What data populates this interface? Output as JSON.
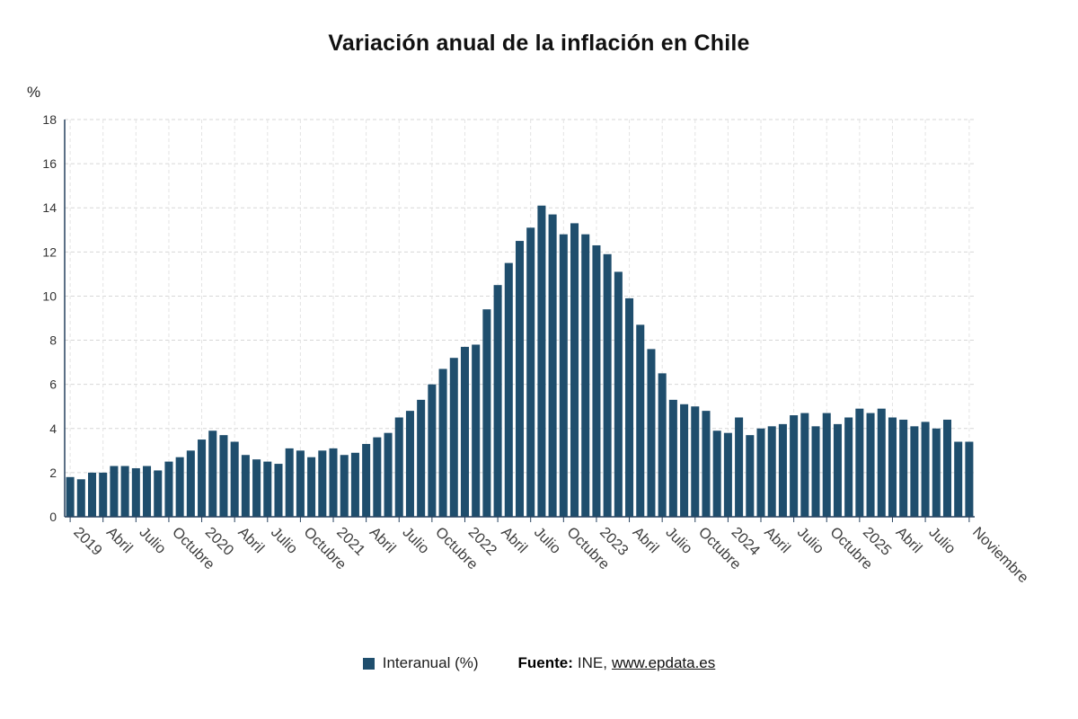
{
  "chart_data": {
    "type": "bar",
    "title": "Variación anual de la inflación en Chile",
    "ylabel": "%",
    "ylim": [
      0,
      18
    ],
    "y_ticks": [
      0,
      2,
      4,
      6,
      8,
      10,
      12,
      14,
      16,
      18
    ],
    "grid": true,
    "legend_position": "bottom",
    "bar_color": "#1f4e6d",
    "axis_color": "#26415e",
    "x_ticks": [
      {
        "i": 0,
        "label": "2019"
      },
      {
        "i": 3,
        "label": "Abril"
      },
      {
        "i": 6,
        "label": "Julio"
      },
      {
        "i": 9,
        "label": "Octubre"
      },
      {
        "i": 12,
        "label": "2020"
      },
      {
        "i": 15,
        "label": "Abril"
      },
      {
        "i": 18,
        "label": "Julio"
      },
      {
        "i": 21,
        "label": "Octubre"
      },
      {
        "i": 24,
        "label": "2021"
      },
      {
        "i": 27,
        "label": "Abril"
      },
      {
        "i": 30,
        "label": "Julio"
      },
      {
        "i": 33,
        "label": "Octubre"
      },
      {
        "i": 36,
        "label": "2022"
      },
      {
        "i": 39,
        "label": "Abril"
      },
      {
        "i": 42,
        "label": "Julio"
      },
      {
        "i": 45,
        "label": "Octubre"
      },
      {
        "i": 48,
        "label": "2023"
      },
      {
        "i": 51,
        "label": "Abril"
      },
      {
        "i": 54,
        "label": "Julio"
      },
      {
        "i": 57,
        "label": "Octubre"
      },
      {
        "i": 60,
        "label": "2024"
      },
      {
        "i": 63,
        "label": "Abril"
      },
      {
        "i": 66,
        "label": "Julio"
      },
      {
        "i": 69,
        "label": "Octubre"
      },
      {
        "i": 72,
        "label": "2025"
      },
      {
        "i": 75,
        "label": "Abril"
      },
      {
        "i": 78,
        "label": "Julio"
      },
      {
        "i": 82,
        "label": "Noviembre"
      }
    ],
    "series": [
      {
        "name": "Interanual (%)",
        "values": [
          1.8,
          1.7,
          2.0,
          2.0,
          2.3,
          2.3,
          2.2,
          2.3,
          2.1,
          2.5,
          2.7,
          3.0,
          3.5,
          3.9,
          3.7,
          3.4,
          2.8,
          2.6,
          2.5,
          2.4,
          3.1,
          3.0,
          2.7,
          3.0,
          3.1,
          2.8,
          2.9,
          3.3,
          3.6,
          3.8,
          4.5,
          4.8,
          5.3,
          6.0,
          6.7,
          7.2,
          7.7,
          7.8,
          9.4,
          10.5,
          11.5,
          12.5,
          13.1,
          14.1,
          13.7,
          12.8,
          13.3,
          12.8,
          12.3,
          11.9,
          11.1,
          9.9,
          8.7,
          7.6,
          6.5,
          5.3,
          5.1,
          5.0,
          4.8,
          3.9,
          3.8,
          4.5,
          3.7,
          4.0,
          4.1,
          4.2,
          4.6,
          4.7,
          4.1,
          4.7,
          4.2,
          4.5,
          4.9,
          4.7,
          4.9,
          4.5,
          4.4,
          4.1,
          4.3,
          4.0,
          4.4,
          3.4,
          3.4
        ]
      }
    ]
  },
  "source": {
    "prefix": "Fuente:",
    "agency": "INE,",
    "link": "www.epdata.es"
  }
}
